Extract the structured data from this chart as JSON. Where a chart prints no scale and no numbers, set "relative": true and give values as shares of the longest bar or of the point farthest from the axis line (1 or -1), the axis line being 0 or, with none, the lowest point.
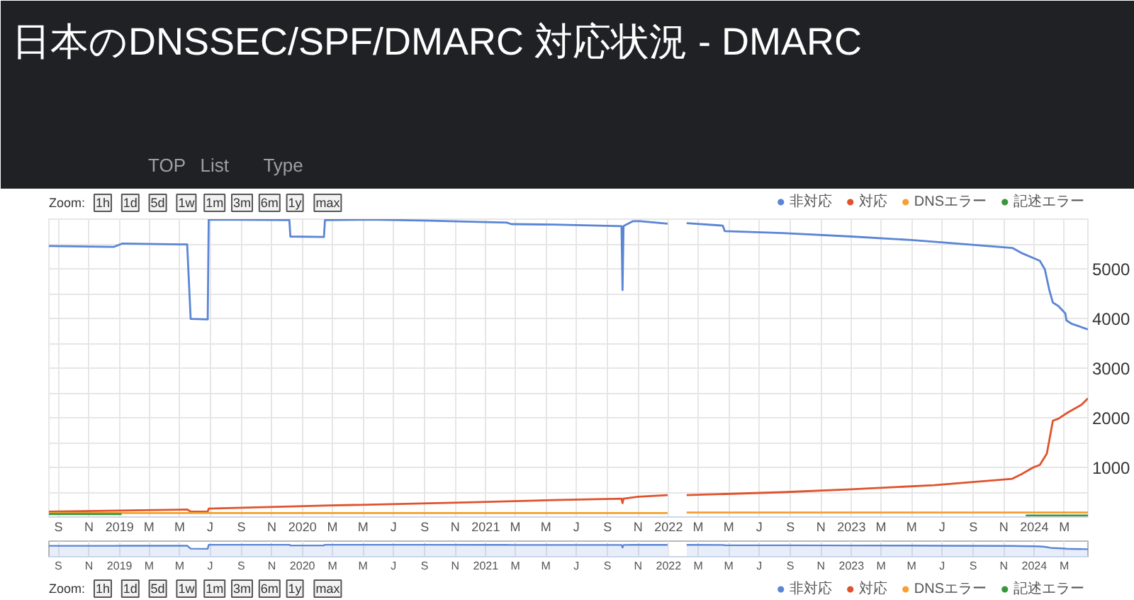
{
  "chart_data": [
    {
      "type": "other",
      "title": "日本のDNSSEC/SPF/DMARC 対応状況 - DMARC",
      "annotations": [
        "TOP",
        "List",
        "Type"
      ]
    },
    {
      "type": "line",
      "annotations": [
        "Zoom:",
        "1h",
        "1d",
        "5d",
        "1w",
        "1m",
        "3m",
        "6m",
        "1y",
        "max"
      ],
      "xlim": [
        "2018-08-13",
        "2024-04-17"
      ],
      "xticks": [
        {
          "value": "2018-09-01",
          "label": "S"
        },
        {
          "value": "2018-11-01",
          "label": "N"
        },
        {
          "value": "2019-01-01",
          "label": "2019"
        },
        {
          "value": "2019-03-01",
          "label": "M"
        },
        {
          "value": "2019-05-01",
          "label": "M"
        },
        {
          "value": "2019-07-01",
          "label": "J"
        },
        {
          "value": "2019-09-01",
          "label": "S"
        },
        {
          "value": "2019-11-01",
          "label": "N"
        },
        {
          "value": "2020-01-01",
          "label": "2020"
        },
        {
          "value": "2020-03-01",
          "label": "M"
        },
        {
          "value": "2020-05-01",
          "label": "M"
        },
        {
          "value": "2020-07-01",
          "label": "J"
        },
        {
          "value": "2020-09-01",
          "label": "S"
        },
        {
          "value": "2020-11-01",
          "label": "N"
        },
        {
          "value": "2021-01-01",
          "label": "2021"
        },
        {
          "value": "2021-03-01",
          "label": "M"
        },
        {
          "value": "2021-05-01",
          "label": "M"
        },
        {
          "value": "2021-07-01",
          "label": "J"
        },
        {
          "value": "2021-09-01",
          "label": "S"
        },
        {
          "value": "2021-11-01",
          "label": "N"
        },
        {
          "value": "2022-01-01",
          "label": "2022"
        },
        {
          "value": "2022-03-01",
          "label": "M"
        },
        {
          "value": "2022-05-01",
          "label": "M"
        },
        {
          "value": "2022-07-01",
          "label": "J"
        },
        {
          "value": "2022-09-01",
          "label": "S"
        },
        {
          "value": "2022-11-01",
          "label": "N"
        },
        {
          "value": "2023-01-01",
          "label": "2023"
        },
        {
          "value": "2023-03-01",
          "label": "M"
        },
        {
          "value": "2023-05-01",
          "label": "M"
        },
        {
          "value": "2023-07-01",
          "label": "J"
        },
        {
          "value": "2023-09-01",
          "label": "S"
        },
        {
          "value": "2023-11-01",
          "label": "N"
        },
        {
          "value": "2024-01-01",
          "label": "2024"
        },
        {
          "value": "2024-03-01",
          "label": "M"
        }
      ],
      "ylim": [
        0,
        6000
      ],
      "yticks": [
        {
          "value": 0,
          "label": null
        },
        {
          "value": 500,
          "label": null
        },
        1000,
        {
          "value": 1500,
          "label": null
        },
        2000,
        {
          "value": 2500,
          "label": null
        },
        3000,
        {
          "value": 3500,
          "label": null
        },
        4000,
        {
          "value": 4500,
          "label": null
        },
        5000,
        {
          "value": 5500,
          "label": null
        },
        {
          "value": 6000,
          "label": null
        }
      ],
      "grid": true,
      "legend": "top right",
      "series": [
        {
          "name": "非対応",
          "color": "#5b85d5",
          "x": [
            "2018-08-13",
            "2018-12-20",
            "2019-01-07",
            "2019-05-16",
            "2019-05-23",
            "2019-06-26",
            "2019-06-28",
            "2019-12-06",
            "2019-12-08",
            "2020-02-13",
            "2020-02-15",
            "2020-05-13",
            "2020-09-09",
            "2021-02-12",
            "2021-02-21",
            "2021-05-15",
            "2021-09-29",
            "2021-10-01",
            "2021-10-03",
            "2021-10-22",
            "2021-11-05",
            "2021-12-30",
            "2022-01-15",
            "2022-02-06",
            "2022-04-19",
            "2022-04-23",
            "2022-08-17",
            "2023-01-01",
            "2023-04-30",
            "2023-07-03",
            "2023-11-18",
            "2023-12-06",
            "2024-01-03",
            "2024-01-12",
            "2024-01-22",
            "2024-01-31",
            "2024-02-07",
            "2024-02-18",
            "2024-03-03",
            "2024-03-05",
            "2024-03-16",
            "2024-04-17"
          ],
          "values": [
            5460,
            5440,
            5510,
            5490,
            3990,
            3980,
            5990,
            5980,
            5650,
            5640,
            5980,
            5990,
            5970,
            5930,
            5900,
            5890,
            5860,
            4570,
            5860,
            5960,
            5960,
            5910,
            null,
            5920,
            5870,
            5760,
            5720,
            5650,
            5580,
            5530,
            5420,
            5320,
            5200,
            5160,
            4990,
            4570,
            4320,
            4250,
            4100,
            3960,
            3890,
            3780
          ]
        },
        {
          "name": "対応",
          "color": "#e0532d",
          "x": [
            "2018-08-13",
            "2019-05-16",
            "2019-05-23",
            "2019-06-26",
            "2019-06-28",
            "2020-02-13",
            "2020-11-11",
            "2021-05-15",
            "2021-09-29",
            "2021-10-01",
            "2021-10-03",
            "2021-11-01",
            "2021-12-30",
            "2022-01-15",
            "2022-02-06",
            "2022-08-17",
            "2023-01-01",
            "2023-06-15",
            "2023-11-18",
            "2023-12-06",
            "2023-12-30",
            "2024-01-12",
            "2024-01-26",
            "2024-02-02",
            "2024-02-07",
            "2024-02-18",
            "2024-03-07",
            "2024-04-04",
            "2024-04-17"
          ],
          "values": [
            110,
            150,
            110,
            110,
            170,
            230,
            290,
            340,
            370,
            280,
            370,
            410,
            440,
            null,
            440,
            500,
            560,
            640,
            770,
            860,
            1000,
            1050,
            1280,
            1660,
            1940,
            1980,
            2100,
            2260,
            2390
          ]
        },
        {
          "name": "DNSエラー",
          "color": "#f5a031",
          "x": [
            "2018-08-13",
            "2021-12-30",
            "2022-01-15",
            "2022-02-06",
            "2024-04-17"
          ],
          "values": [
            80,
            80,
            null,
            90,
            90
          ]
        },
        {
          "name": "記述エラー",
          "color": "#3a963a",
          "x": [
            "2018-08-13",
            "2019-01-05",
            "2019-01-06",
            "2023-12-15",
            "2024-04-17"
          ],
          "values": [
            60,
            60,
            null,
            30,
            30
          ]
        }
      ]
    },
    {
      "type": "area",
      "relative": true,
      "xlim": [
        "2018-08-13",
        "2024-04-17"
      ],
      "xticks": [
        {
          "value": "2018-09-01",
          "label": "S"
        },
        {
          "value": "2018-11-01",
          "label": "N"
        },
        {
          "value": "2019-01-01",
          "label": "2019"
        },
        {
          "value": "2019-03-01",
          "label": "M"
        },
        {
          "value": "2019-05-01",
          "label": "M"
        },
        {
          "value": "2019-07-01",
          "label": "J"
        },
        {
          "value": "2019-09-01",
          "label": "S"
        },
        {
          "value": "2019-11-01",
          "label": "N"
        },
        {
          "value": "2020-01-01",
          "label": "2020"
        },
        {
          "value": "2020-03-01",
          "label": "M"
        },
        {
          "value": "2020-05-01",
          "label": "M"
        },
        {
          "value": "2020-07-01",
          "label": "J"
        },
        {
          "value": "2020-09-01",
          "label": "S"
        },
        {
          "value": "2020-11-01",
          "label": "N"
        },
        {
          "value": "2021-01-01",
          "label": "2021"
        },
        {
          "value": "2021-03-01",
          "label": "M"
        },
        {
          "value": "2021-05-01",
          "label": "M"
        },
        {
          "value": "2021-07-01",
          "label": "J"
        },
        {
          "value": "2021-09-01",
          "label": "S"
        },
        {
          "value": "2021-11-01",
          "label": "N"
        },
        {
          "value": "2022-01-01",
          "label": "2022"
        },
        {
          "value": "2022-03-01",
          "label": "M"
        },
        {
          "value": "2022-05-01",
          "label": "M"
        },
        {
          "value": "2022-07-01",
          "label": "J"
        },
        {
          "value": "2022-09-01",
          "label": "S"
        },
        {
          "value": "2022-11-01",
          "label": "N"
        },
        {
          "value": "2023-01-01",
          "label": "2023"
        },
        {
          "value": "2023-03-01",
          "label": "M"
        },
        {
          "value": "2023-05-01",
          "label": "M"
        },
        {
          "value": "2023-07-01",
          "label": "J"
        },
        {
          "value": "2023-09-01",
          "label": "S"
        },
        {
          "value": "2023-11-01",
          "label": "N"
        },
        {
          "value": "2024-01-01",
          "label": "2024"
        },
        {
          "value": "2024-03-01",
          "label": "M"
        }
      ],
      "grid": "x",
      "series": [
        {
          "color": "#5b85d5",
          "x": [
            "2018-08-13",
            "2018-12-20",
            "2019-01-07",
            "2019-05-16",
            "2019-05-23",
            "2019-06-26",
            "2019-06-28",
            "2019-12-06",
            "2019-12-08",
            "2020-02-13",
            "2020-02-15",
            "2020-05-13",
            "2020-09-09",
            "2021-02-12",
            "2021-02-21",
            "2021-05-15",
            "2021-09-29",
            "2021-10-01",
            "2021-10-03",
            "2021-10-22",
            "2021-11-05",
            "2021-12-30",
            "2022-01-15",
            "2022-02-06",
            "2022-04-19",
            "2022-04-23",
            "2022-08-17",
            "2023-01-01",
            "2023-04-30",
            "2023-07-03",
            "2023-11-18",
            "2023-12-06",
            "2024-01-03",
            "2024-01-12",
            "2024-01-22",
            "2024-01-31",
            "2024-02-07",
            "2024-02-18",
            "2024-03-03",
            "2024-03-05",
            "2024-03-16",
            "2024-04-17"
          ],
          "values": [
            0.91,
            0.91,
            0.92,
            0.92,
            0.67,
            0.66,
            1.0,
            1.0,
            0.94,
            0.94,
            1.0,
            1.0,
            1.0,
            0.99,
            0.98,
            0.98,
            0.98,
            0.76,
            0.98,
            0.99,
            0.99,
            0.99,
            null,
            0.99,
            0.98,
            0.96,
            0.95,
            0.94,
            0.93,
            0.92,
            0.9,
            0.89,
            0.87,
            0.86,
            0.83,
            0.76,
            0.72,
            0.71,
            0.68,
            0.66,
            0.65,
            0.63
          ]
        }
      ]
    },
    {
      "type": "other",
      "annotations": [
        "Zoom:",
        "1h",
        "1d",
        "5d",
        "1w",
        "1m",
        "3m",
        "6m",
        "1y",
        "max"
      ],
      "legend": "top right",
      "series": [
        {
          "name": "非対応",
          "color": "#5b85d5"
        },
        {
          "name": "対応",
          "color": "#e0532d"
        },
        {
          "name": "DNSエラー",
          "color": "#f5a031"
        },
        {
          "name": "記述エラー",
          "color": "#3a963a"
        }
      ]
    }
  ]
}
